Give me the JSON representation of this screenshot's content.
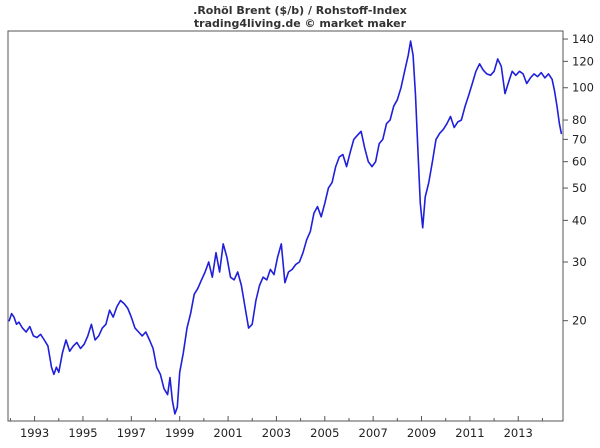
{
  "chart_data": {
    "type": "line",
    "title": ".Rohöl Brent ($/b) / Rohstoff-Index",
    "subtitle": "trading4living.de © market maker",
    "xlabel": "",
    "ylabel": "",
    "y_scale": "log",
    "ylim": [
      10,
      148
    ],
    "xlim": [
      1991.9,
      2014.85
    ],
    "grid": false,
    "legend": "none",
    "colors": {
      "line": "#1f1fdc",
      "frame": "#555555",
      "text": "#222222"
    },
    "x_ticks": [
      1993,
      1995,
      1997,
      1999,
      2001,
      2003,
      2005,
      2007,
      2009,
      2011,
      2013
    ],
    "x_minor_ticks": [
      1992,
      1994,
      1996,
      1998,
      2000,
      2002,
      2004,
      2006,
      2008,
      2010,
      2012,
      2014
    ],
    "y_ticks": [
      20,
      30,
      40,
      50,
      60,
      70,
      80,
      100,
      120,
      140
    ],
    "series": [
      {
        "x": [
          1991.95,
          1992.05,
          1992.15,
          1992.25,
          1992.35,
          1992.5,
          1992.65,
          1992.8,
          1992.95,
          1993.1,
          1993.25,
          1993.4,
          1993.55,
          1993.7,
          1993.8,
          1993.9,
          1994.0,
          1994.15,
          1994.3,
          1994.45,
          1994.6,
          1994.75,
          1994.9,
          1995.05,
          1995.2,
          1995.35,
          1995.5,
          1995.65,
          1995.8,
          1995.95,
          1996.1,
          1996.25,
          1996.4,
          1996.55,
          1996.7,
          1996.85,
          1997.0,
          1997.15,
          1997.3,
          1997.45,
          1997.6,
          1997.75,
          1997.9,
          1998.05,
          1998.2,
          1998.35,
          1998.5,
          1998.6,
          1998.7,
          1998.8,
          1998.9,
          1999.0,
          1999.15,
          1999.3,
          1999.45,
          1999.6,
          1999.75,
          1999.9,
          2000.05,
          2000.2,
          2000.35,
          2000.5,
          2000.65,
          2000.8,
          2000.95,
          2001.1,
          2001.25,
          2001.4,
          2001.55,
          2001.7,
          2001.85,
          2002.0,
          2002.15,
          2002.3,
          2002.45,
          2002.6,
          2002.75,
          2002.9,
          2003.05,
          2003.2,
          2003.35,
          2003.5,
          2003.65,
          2003.8,
          2003.95,
          2004.1,
          2004.25,
          2004.4,
          2004.55,
          2004.7,
          2004.85,
          2005.0,
          2005.15,
          2005.3,
          2005.45,
          2005.6,
          2005.75,
          2005.9,
          2006.05,
          2006.2,
          2006.35,
          2006.5,
          2006.65,
          2006.8,
          2006.95,
          2007.1,
          2007.25,
          2007.4,
          2007.55,
          2007.7,
          2007.85,
          2008.0,
          2008.15,
          2008.3,
          2008.45,
          2008.55,
          2008.65,
          2008.75,
          2008.85,
          2008.95,
          2009.05,
          2009.15,
          2009.3,
          2009.45,
          2009.6,
          2009.75,
          2009.9,
          2010.05,
          2010.2,
          2010.35,
          2010.5,
          2010.65,
          2010.8,
          2010.95,
          2011.1,
          2011.25,
          2011.4,
          2011.55,
          2011.7,
          2011.85,
          2012.0,
          2012.15,
          2012.3,
          2012.45,
          2012.6,
          2012.75,
          2012.9,
          2013.05,
          2013.2,
          2013.35,
          2013.5,
          2013.65,
          2013.8,
          2013.95,
          2014.1,
          2014.25,
          2014.4,
          2014.5,
          2014.6,
          2014.7,
          2014.78
        ],
        "values": [
          20.0,
          21.0,
          20.5,
          19.5,
          19.8,
          19.0,
          18.5,
          19.2,
          18.0,
          17.8,
          18.2,
          17.5,
          16.8,
          14.5,
          13.8,
          14.5,
          14.0,
          16.0,
          17.5,
          16.2,
          16.8,
          17.2,
          16.5,
          17.0,
          18.0,
          19.5,
          17.5,
          18.0,
          19.0,
          19.5,
          21.5,
          20.5,
          22.0,
          23.0,
          22.5,
          21.8,
          20.5,
          19.0,
          18.5,
          18.0,
          18.5,
          17.5,
          16.5,
          14.5,
          13.8,
          12.5,
          12.0,
          13.5,
          11.5,
          10.5,
          11.0,
          14.0,
          16.0,
          19.0,
          21.0,
          24.0,
          25.0,
          26.5,
          28.0,
          30.0,
          27.0,
          32.0,
          28.0,
          34.0,
          31.0,
          27.0,
          26.5,
          28.0,
          25.5,
          22.0,
          19.0,
          19.5,
          23.0,
          25.5,
          27.0,
          26.5,
          28.5,
          27.5,
          31.0,
          34.0,
          26.0,
          28.0,
          28.5,
          29.5,
          30.0,
          32.0,
          35.0,
          37.0,
          42.0,
          44.0,
          41.0,
          45.0,
          50.0,
          52.0,
          58.0,
          62.0,
          63.0,
          58.0,
          64.0,
          70.0,
          72.0,
          74.0,
          66.0,
          60.0,
          58.0,
          60.0,
          68.0,
          70.0,
          78.0,
          80.0,
          88.0,
          92.0,
          100.0,
          112.0,
          125.0,
          138.0,
          125.0,
          95.0,
          65.0,
          45.0,
          38.0,
          47.0,
          52.0,
          60.0,
          70.0,
          73.0,
          75.0,
          78.0,
          82.0,
          76.0,
          79.0,
          80.0,
          88.0,
          95.0,
          103.0,
          112.0,
          118.0,
          113.0,
          110.0,
          109.0,
          112.0,
          122.0,
          116.0,
          96.0,
          104.0,
          112.0,
          109.0,
          112.0,
          110.0,
          103.0,
          107.0,
          110.0,
          108.0,
          111.0,
          107.0,
          110.0,
          106.0,
          98.0,
          88.0,
          78.0,
          73.0
        ]
      }
    ]
  }
}
